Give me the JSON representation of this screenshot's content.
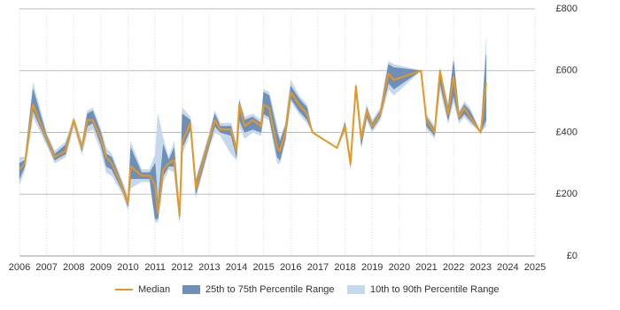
{
  "chart_data": {
    "type": "line",
    "x": [
      2006.0,
      2006.2,
      2006.5,
      2007.0,
      2007.3,
      2007.7,
      2008.0,
      2008.3,
      2008.5,
      2008.7,
      2009.0,
      2009.2,
      2009.4,
      2009.8,
      2010.0,
      2010.1,
      2010.5,
      2010.8,
      2011.0,
      2011.1,
      2011.3,
      2011.5,
      2011.7,
      2011.9,
      2012.0,
      2012.3,
      2012.5,
      2013.0,
      2013.2,
      2013.4,
      2013.8,
      2014.0,
      2014.1,
      2014.3,
      2014.6,
      2014.9,
      2015.0,
      2015.2,
      2015.5,
      2015.6,
      2015.8,
      2016.0,
      2016.3,
      2016.6,
      2016.8,
      2017.7,
      2018.0,
      2018.2,
      2018.4,
      2018.6,
      2018.8,
      2019.0,
      2019.3,
      2019.6,
      2019.8,
      2020.8,
      2021.0,
      2021.3,
      2021.5,
      2021.8,
      2022.0,
      2022.2,
      2022.4,
      2022.6,
      2023.0,
      2023.2
    ],
    "bands": [
      {
        "name": "10th to 90th Percentile Range",
        "color": "#c6d9ec",
        "low": [
          230,
          280,
          450,
          360,
          300,
          320,
          420,
          330,
          400,
          410,
          340,
          270,
          260,
          200,
          150,
          220,
          240,
          240,
          110,
          110,
          240,
          280,
          270,
          110,
          330,
          400,
          190,
          350,
          400,
          390,
          330,
          310,
          420,
          380,
          400,
          390,
          450,
          440,
          300,
          300,
          370,
          500,
          460,
          430,
          400,
          350,
          400,
          280,
          520,
          350,
          440,
          400,
          440,
          540,
          520,
          600,
          410,
          380,
          540,
          430,
          500,
          430,
          450,
          430,
          400,
          420
        ],
        "high": [
          320,
          320,
          560,
          400,
          340,
          370,
          450,
          370,
          470,
          480,
          410,
          350,
          330,
          240,
          190,
          370,
          280,
          280,
          330,
          460,
          380,
          320,
          370,
          150,
          480,
          450,
          250,
          400,
          470,
          430,
          430,
          360,
          510,
          450,
          460,
          440,
          540,
          530,
          420,
          380,
          430,
          570,
          520,
          490,
          400,
          350,
          440,
          320,
          560,
          400,
          490,
          440,
          480,
          630,
          620,
          600,
          460,
          420,
          610,
          490,
          640,
          470,
          500,
          480,
          400,
          700
        ]
      },
      {
        "name": "25th to 75th Percentile Range",
        "color": "#6d8fb8",
        "low": [
          250,
          290,
          470,
          370,
          310,
          330,
          430,
          340,
          420,
          430,
          360,
          290,
          280,
          210,
          160,
          250,
          250,
          250,
          120,
          120,
          260,
          290,
          290,
          120,
          350,
          410,
          200,
          360,
          420,
          400,
          390,
          320,
          440,
          400,
          410,
          400,
          460,
          450,
          320,
          310,
          380,
          510,
          470,
          440,
          400,
          350,
          410,
          290,
          530,
          360,
          450,
          410,
          450,
          560,
          540,
          600,
          420,
          390,
          560,
          440,
          520,
          440,
          460,
          440,
          400,
          440
        ],
        "high": [
          300,
          310,
          540,
          390,
          330,
          360,
          440,
          360,
          460,
          470,
          400,
          330,
          320,
          230,
          180,
          350,
          270,
          270,
          300,
          170,
          360,
          310,
          350,
          140,
          460,
          440,
          240,
          390,
          460,
          420,
          420,
          350,
          500,
          440,
          450,
          430,
          530,
          520,
          400,
          370,
          420,
          550,
          510,
          480,
          400,
          350,
          430,
          310,
          550,
          390,
          480,
          430,
          470,
          620,
          610,
          600,
          450,
          410,
          600,
          480,
          630,
          460,
          490,
          470,
          400,
          650
        ]
      }
    ],
    "series": [
      {
        "name": "Median",
        "color": "#e8971f",
        "values": [
          280,
          300,
          490,
          380,
          320,
          340,
          440,
          350,
          440,
          440,
          380,
          320,
          300,
          220,
          170,
          290,
          260,
          260,
          230,
          140,
          280,
          300,
          310,
          130,
          370,
          430,
          220,
          380,
          440,
          410,
          410,
          340,
          490,
          420,
          440,
          420,
          490,
          480,
          350,
          340,
          400,
          530,
          490,
          460,
          400,
          350,
          420,
          300,
          550,
          380,
          470,
          420,
          460,
          590,
          570,
          600,
          440,
          400,
          600,
          460,
          580,
          450,
          480,
          450,
          400,
          560
        ]
      }
    ],
    "xlim": [
      2006,
      2025
    ],
    "xticks": [
      2006,
      2007,
      2008,
      2009,
      2010,
      2011,
      2012,
      2013,
      2014,
      2015,
      2016,
      2017,
      2018,
      2019,
      2020,
      2021,
      2022,
      2023,
      2024,
      2025
    ],
    "ylim": [
      0,
      800
    ],
    "yticks": [
      {
        "value": 0,
        "label": "£0"
      },
      {
        "value": 200,
        "label": "£200"
      },
      {
        "value": 400,
        "label": "£400"
      },
      {
        "value": 600,
        "label": "£600"
      },
      {
        "value": 800,
        "label": "£800"
      }
    ],
    "grid": true
  }
}
